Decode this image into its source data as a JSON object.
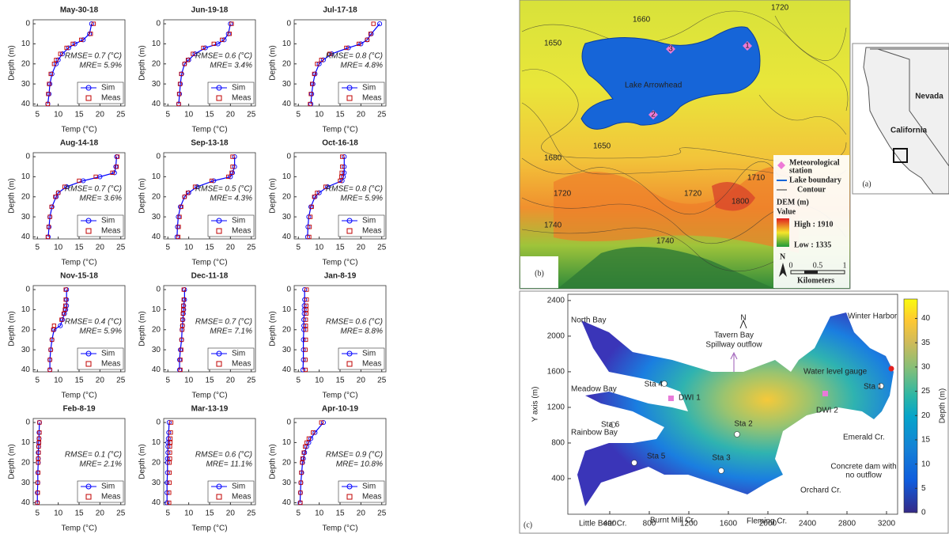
{
  "chart_data": [
    {
      "type": "line",
      "title": "May-30-18",
      "xlabel": "Temp (°C)",
      "ylabel": "Depth (m)",
      "xlim": [
        4,
        26
      ],
      "xticks": [
        5,
        10,
        15,
        20,
        25
      ],
      "ylim": [
        -2,
        41
      ],
      "y_inverted": true,
      "yticks": [
        0,
        10,
        20,
        30,
        40
      ],
      "y": [
        0,
        5,
        8,
        10,
        12,
        15,
        18,
        20,
        25,
        30,
        35,
        40
      ],
      "series": [
        {
          "name": "Sim",
          "color": "#0000ff",
          "values": [
            18,
            17.5,
            16,
            14,
            12.5,
            11,
            10,
            9.5,
            8.5,
            8,
            7.8,
            7.5
          ]
        },
        {
          "name": "Meas",
          "color": "#c00000",
          "values": [
            18.5,
            17.8,
            15.5,
            13.5,
            12,
            10.5,
            9.5,
            9,
            8.2,
            7.8,
            7.6,
            7.5
          ]
        }
      ],
      "annotations": [
        "RMSE= 0.7 (°C)",
        "MRE= 5.9%"
      ]
    },
    {
      "type": "line",
      "title": "Jun-19-18",
      "xlabel": "Temp (°C)",
      "ylabel": "Depth (m)",
      "xlim": [
        4,
        26
      ],
      "xticks": [
        5,
        10,
        15,
        20,
        25
      ],
      "ylim": [
        -2,
        41
      ],
      "y_inverted": true,
      "yticks": [
        0,
        10,
        20,
        30,
        40
      ],
      "y": [
        0,
        5,
        8,
        10,
        12,
        15,
        18,
        20,
        25,
        30,
        35,
        40
      ],
      "series": [
        {
          "name": "Sim",
          "color": "#0000ff",
          "values": [
            20,
            19.5,
            18.5,
            17,
            14,
            11.5,
            10,
            9,
            8.3,
            8,
            7.8,
            7.6
          ]
        },
        {
          "name": "Meas",
          "color": "#c00000",
          "values": [
            20.3,
            19.8,
            18,
            16,
            13.5,
            11,
            9.8,
            9,
            8.2,
            7.9,
            7.7,
            7.6
          ]
        }
      ],
      "annotations": [
        "RMSE= 0.6 (°C)",
        "MRE= 3.4%"
      ]
    },
    {
      "type": "line",
      "title": "Jul-17-18",
      "xlabel": "Temp (°C)",
      "ylabel": "Depth (m)",
      "xlim": [
        4,
        26
      ],
      "xticks": [
        5,
        10,
        15,
        20,
        25
      ],
      "ylim": [
        -2,
        41
      ],
      "y_inverted": true,
      "yticks": [
        0,
        10,
        20,
        30,
        40
      ],
      "y": [
        0,
        5,
        8,
        10,
        12,
        15,
        18,
        20,
        25,
        30,
        35,
        40
      ],
      "series": [
        {
          "name": "Sim",
          "color": "#0000ff",
          "values": [
            24.5,
            22.5,
            21.5,
            20,
            17,
            13,
            11,
            10,
            9,
            8.5,
            8.2,
            8
          ]
        },
        {
          "name": "Meas",
          "color": "#c00000",
          "values": [
            23,
            22.3,
            21.5,
            19.5,
            16.5,
            12.5,
            10.5,
            9.5,
            8.8,
            8.3,
            8,
            7.8
          ]
        }
      ],
      "annotations": [
        "RMSE= 0.8 (°C)",
        "MRE= 4.8%"
      ]
    },
    {
      "type": "line",
      "title": "Aug-14-18",
      "xlabel": "Temp (°C)",
      "ylabel": "Depth (m)",
      "xlim": [
        4,
        26
      ],
      "xticks": [
        5,
        10,
        15,
        20,
        25
      ],
      "ylim": [
        -2,
        41
      ],
      "y_inverted": true,
      "yticks": [
        0,
        10,
        20,
        30,
        40
      ],
      "y": [
        0,
        5,
        8,
        10,
        12,
        15,
        18,
        20,
        25,
        30,
        35,
        40
      ],
      "series": [
        {
          "name": "Sim",
          "color": "#0000ff",
          "values": [
            24,
            23.8,
            23.5,
            20,
            16,
            12,
            10,
            9.5,
            8.5,
            8,
            7.8,
            7.6
          ]
        },
        {
          "name": "Meas",
          "color": "#c00000",
          "values": [
            24.2,
            24,
            23,
            19,
            15,
            11.5,
            10,
            9.3,
            8.4,
            8,
            7.7,
            7.5
          ]
        }
      ],
      "annotations": [
        "RMSE= 0.7 (°C)",
        "MRE= 3.6%"
      ]
    },
    {
      "type": "line",
      "title": "Sep-13-18",
      "xlabel": "Temp (°C)",
      "ylabel": "Depth (m)",
      "xlim": [
        4,
        26
      ],
      "xticks": [
        5,
        10,
        15,
        20,
        25
      ],
      "ylim": [
        -2,
        41
      ],
      "y_inverted": true,
      "yticks": [
        0,
        10,
        20,
        30,
        40
      ],
      "y": [
        0,
        5,
        8,
        10,
        12,
        15,
        18,
        20,
        25,
        30,
        35,
        40
      ],
      "series": [
        {
          "name": "Sim",
          "color": "#0000ff",
          "values": [
            21,
            21,
            20.5,
            20,
            16,
            12,
            10,
            9,
            8,
            7.5,
            7.3,
            7.2
          ]
        },
        {
          "name": "Meas",
          "color": "#c00000",
          "values": [
            20.5,
            20.5,
            20.3,
            19.5,
            15.5,
            11.5,
            9.8,
            9,
            8.2,
            7.8,
            7.6,
            7.5
          ]
        }
      ],
      "annotations": [
        "RMSE= 0.5 (°C)",
        "MRE= 4.3%"
      ]
    },
    {
      "type": "line",
      "title": "Oct-16-18",
      "xlabel": "Temp (°C)",
      "ylabel": "Depth (m)",
      "xlim": [
        4,
        26
      ],
      "xticks": [
        5,
        10,
        15,
        20,
        25
      ],
      "ylim": [
        -2,
        41
      ],
      "y_inverted": true,
      "yticks": [
        0,
        10,
        20,
        30,
        40
      ],
      "y": [
        0,
        5,
        8,
        10,
        12,
        15,
        18,
        20,
        25,
        30,
        35,
        40
      ],
      "series": [
        {
          "name": "Sim",
          "color": "#0000ff",
          "values": [
            16,
            16,
            16,
            15.8,
            15.5,
            12,
            10,
            9,
            8,
            7.5,
            7.3,
            7.2
          ]
        },
        {
          "name": "Meas",
          "color": "#c00000",
          "values": [
            15.5,
            15.5,
            15.4,
            15.3,
            15,
            11.5,
            9.5,
            8.8,
            8.2,
            7.9,
            7.7,
            7.6
          ]
        }
      ],
      "annotations": [
        "RMSE= 0.8 (°C)",
        "MRE= 5.9%"
      ]
    },
    {
      "type": "line",
      "title": "Nov-15-18",
      "xlabel": "Temp (°C)",
      "ylabel": "Depth (m)",
      "xlim": [
        4,
        26
      ],
      "xticks": [
        5,
        10,
        15,
        20,
        25
      ],
      "ylim": [
        -2,
        41
      ],
      "y_inverted": true,
      "yticks": [
        0,
        10,
        20,
        30,
        40
      ],
      "y": [
        0,
        5,
        8,
        10,
        12,
        15,
        18,
        20,
        25,
        30,
        35,
        40
      ],
      "series": [
        {
          "name": "Sim",
          "color": "#0000ff",
          "values": [
            12,
            12,
            12,
            11.8,
            11.5,
            11,
            10.5,
            9,
            8.5,
            8.2,
            8,
            8
          ]
        },
        {
          "name": "Meas",
          "color": "#c00000",
          "values": [
            11.8,
            11.8,
            11.7,
            11.6,
            11.3,
            10.8,
            9,
            8.8,
            8.5,
            8.2,
            8,
            8
          ]
        }
      ],
      "annotations": [
        "RMSE= 0.4 (°C)",
        "MRE= 5.9%"
      ]
    },
    {
      "type": "line",
      "title": "Dec-11-18",
      "xlabel": "Temp (°C)",
      "ylabel": "Depth (m)",
      "xlim": [
        4,
        26
      ],
      "xticks": [
        5,
        10,
        15,
        20,
        25
      ],
      "ylim": [
        -2,
        41
      ],
      "y_inverted": true,
      "yticks": [
        0,
        10,
        20,
        30,
        40
      ],
      "y": [
        0,
        5,
        8,
        10,
        12,
        15,
        18,
        20,
        25,
        30,
        35,
        40
      ],
      "series": [
        {
          "name": "Sim",
          "color": "#0000ff",
          "values": [
            9,
            9,
            8.8,
            8.8,
            8.7,
            8.6,
            8.5,
            8.4,
            8.3,
            8,
            7.8,
            7.8
          ]
        },
        {
          "name": "Meas",
          "color": "#c00000",
          "values": [
            8.8,
            8.8,
            8.7,
            8.7,
            8.6,
            8.5,
            8.5,
            8.4,
            8.3,
            8.2,
            8,
            8
          ]
        }
      ],
      "annotations": [
        "RMSE= 0.7 (°C)",
        "MRE= 7.1%"
      ]
    },
    {
      "type": "line",
      "title": "Jan-8-19",
      "xlabel": "Temp (°C)",
      "ylabel": "Depth (m)",
      "xlim": [
        4,
        26
      ],
      "xticks": [
        5,
        10,
        15,
        20,
        25
      ],
      "ylim": [
        -2,
        41
      ],
      "y_inverted": true,
      "yticks": [
        0,
        10,
        20,
        30,
        40
      ],
      "y": [
        0,
        5,
        8,
        10,
        12,
        15,
        18,
        20,
        25,
        30,
        35,
        40
      ],
      "series": [
        {
          "name": "Sim",
          "color": "#0000ff",
          "values": [
            6.5,
            6.5,
            6.4,
            6.4,
            6.4,
            6.3,
            6.3,
            6.3,
            6.2,
            6.2,
            6.2,
            6.1
          ]
        },
        {
          "name": "Meas",
          "color": "#c00000",
          "values": [
            7,
            7,
            6.9,
            6.9,
            6.9,
            6.8,
            6.8,
            6.8,
            6.8,
            6.7,
            6.7,
            6.7
          ]
        }
      ],
      "annotations": [
        "RMSE= 0.6 (°C)",
        "MRE= 8.8%"
      ]
    },
    {
      "type": "line",
      "title": "Feb-8-19",
      "xlabel": "Temp (°C)",
      "ylabel": "Depth (m)",
      "xlim": [
        4,
        26
      ],
      "xticks": [
        5,
        10,
        15,
        20,
        25
      ],
      "ylim": [
        -2,
        41
      ],
      "y_inverted": true,
      "yticks": [
        0,
        10,
        20,
        30,
        40
      ],
      "y": [
        0,
        5,
        8,
        10,
        12,
        15,
        18,
        20,
        25,
        30,
        35,
        40
      ],
      "series": [
        {
          "name": "Sim",
          "color": "#0000ff",
          "values": [
            5.5,
            5.4,
            5.4,
            5.3,
            5.3,
            5.2,
            5.2,
            5.2,
            5.1,
            5.1,
            5,
            5
          ]
        },
        {
          "name": "Meas",
          "color": "#c00000",
          "values": [
            5.5,
            5.5,
            5.4,
            5.4,
            5.3,
            5.3,
            5.2,
            5.2,
            5.2,
            5.1,
            5.1,
            5
          ]
        }
      ],
      "annotations": [
        "RMSE= 0.1 (°C)",
        "MRE= 2.1%"
      ]
    },
    {
      "type": "line",
      "title": "Mar-13-19",
      "xlabel": "Temp (°C)",
      "ylabel": "Depth (m)",
      "xlim": [
        4,
        26
      ],
      "xticks": [
        5,
        10,
        15,
        20,
        25
      ],
      "ylim": [
        -2,
        41
      ],
      "y_inverted": true,
      "yticks": [
        0,
        10,
        20,
        30,
        40
      ],
      "y": [
        0,
        5,
        8,
        10,
        12,
        15,
        18,
        20,
        25,
        30,
        35,
        40
      ],
      "series": [
        {
          "name": "Sim",
          "color": "#0000ff",
          "values": [
            5.3,
            5.2,
            5.1,
            5,
            5,
            5,
            4.9,
            4.9,
            4.9,
            4.8,
            4.8,
            4.8
          ]
        },
        {
          "name": "Meas",
          "color": "#c00000",
          "values": [
            5.8,
            5.7,
            5.6,
            5.6,
            5.5,
            5.5,
            5.5,
            5.4,
            5.4,
            5.4,
            5.3,
            5.3
          ]
        }
      ],
      "annotations": [
        "RMSE= 0.6 (°C)",
        "MRE= 11.1%"
      ]
    },
    {
      "type": "line",
      "title": "Apr-10-19",
      "xlabel": "Temp (°C)",
      "ylabel": "Depth (m)",
      "xlim": [
        4,
        26
      ],
      "xticks": [
        5,
        10,
        15,
        20,
        25
      ],
      "ylim": [
        -2,
        41
      ],
      "y_inverted": true,
      "yticks": [
        0,
        10,
        20,
        30,
        40
      ],
      "y": [
        0,
        5,
        8,
        10,
        12,
        15,
        18,
        20,
        25,
        30,
        35,
        40
      ],
      "series": [
        {
          "name": "Sim",
          "color": "#0000ff",
          "values": [
            11,
            9,
            8,
            7.5,
            7,
            6.5,
            6.2,
            6,
            5.8,
            5.6,
            5.5,
            5.4
          ]
        },
        {
          "name": "Meas",
          "color": "#c00000",
          "values": [
            10.5,
            8.5,
            7.5,
            7,
            6.6,
            6.3,
            6,
            5.9,
            5.7,
            5.6,
            5.5,
            5.5
          ]
        }
      ],
      "annotations": [
        "RMSE= 0.9 (°C)",
        "MRE= 10.8%"
      ]
    },
    {
      "type": "depth-map",
      "panel_label": "(c)",
      "ylabel": "Y axis (m)",
      "colorbar_label": "Depth (m)",
      "xlim": [
        -24,
        3312
      ],
      "xticks": [
        400,
        800,
        1200,
        1600,
        2000,
        2400,
        2800,
        3200
      ],
      "ylim": [
        0,
        2470
      ],
      "yticks": [
        400,
        800,
        1200,
        1600,
        2000,
        2400
      ],
      "clim": [
        0,
        44
      ],
      "cticks": [
        0,
        5,
        10,
        15,
        20,
        25,
        30,
        35,
        40
      ],
      "labels": [
        "North Bay",
        "Tavern Bay",
        "Spillway outflow",
        "Winter Harbor",
        "Water level gauge",
        "Sta 4",
        "DWI 1",
        "Sta 1",
        "DWI 2",
        "Meadow Bay",
        "Sta 6",
        "Sta 2",
        "Emerald Cr.",
        "Rainbow Bay",
        "Sta 5",
        "Sta 3",
        "Concrete dam with",
        "no outflow",
        "Orchard Cr.",
        "Little Bear Cr.",
        "Burnt Mill Cr.",
        "Fleming Cr.",
        "N"
      ]
    }
  ],
  "map_b": {
    "panel_label": "(b)",
    "lake_name": "Lake Arrowhead",
    "stations": [
      "1",
      "2",
      "3"
    ],
    "contour_labels": [
      "1720",
      "1660",
      "1650",
      "1650",
      "1680",
      "1720",
      "1740",
      "1710",
      "1720",
      "1740",
      "1800"
    ],
    "legend": {
      "station": [
        "Meteorological",
        "station"
      ],
      "boundary": "Lake boundary",
      "contour": "Contour",
      "dem": "DEM (m)",
      "value": "Value",
      "high": "High : 1910",
      "low": "Low : 1335"
    },
    "north": "N",
    "scale": [
      "0",
      "0.5",
      "1"
    ],
    "scale_unit": "Kilometers"
  },
  "map_a": {
    "panel_label": "(a)",
    "states": [
      "Nevada",
      "California"
    ]
  }
}
